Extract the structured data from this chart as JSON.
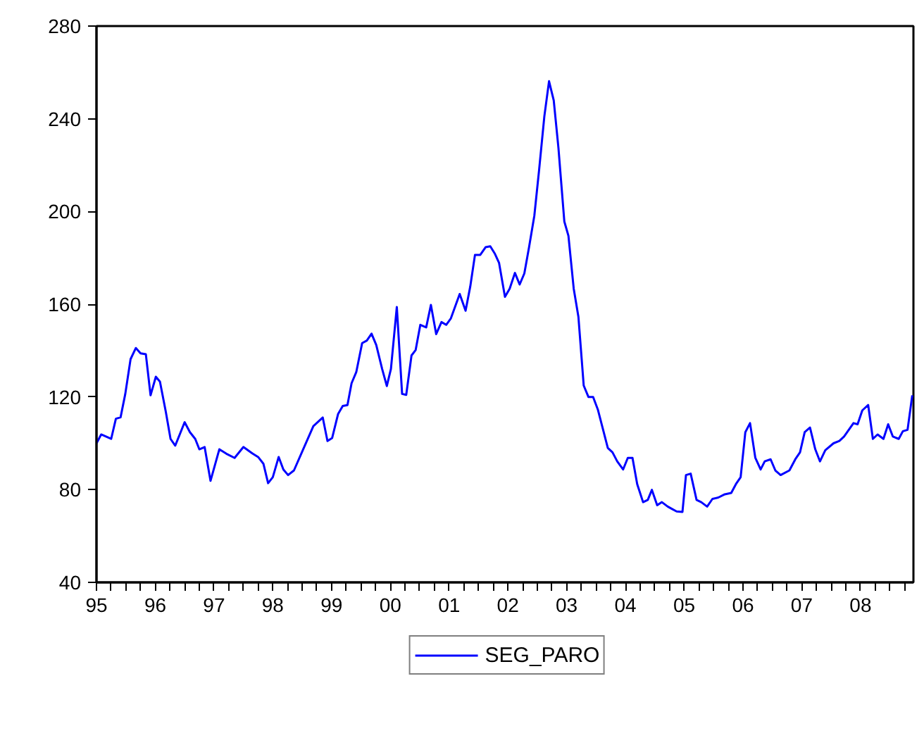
{
  "chart_data": {
    "type": "line",
    "legend": "bottom",
    "x": [
      1995.0,
      1995.08,
      1995.25,
      1995.33,
      1995.41,
      1995.49,
      1995.58,
      1995.67,
      1995.75,
      1995.84,
      1995.92,
      1996.01,
      1996.08,
      1996.18,
      1996.26,
      1996.34,
      1996.5,
      1996.59,
      1996.68,
      1996.75,
      1996.84,
      1996.94,
      1997.09,
      1997.21,
      1997.35,
      1997.5,
      1997.65,
      1997.75,
      1997.84,
      1997.92,
      1998.0,
      1998.1,
      1998.18,
      1998.26,
      1998.36,
      1998.51,
      1998.69,
      1998.85,
      1998.93,
      1999.01,
      1999.11,
      1999.19,
      1999.27,
      1999.34,
      1999.42,
      1999.52,
      1999.6,
      1999.68,
      1999.76,
      1999.86,
      1999.94,
      2000.01,
      2000.11,
      2000.2,
      2000.27,
      2000.36,
      2000.43,
      2000.51,
      2000.61,
      2000.69,
      2000.78,
      2000.87,
      2000.95,
      2001.03,
      2001.18,
      2001.28,
      2001.36,
      2001.44,
      2001.53,
      2001.62,
      2001.7,
      2001.78,
      2001.85,
      2001.95,
      2002.03,
      2002.12,
      2002.2,
      2002.28,
      2002.36,
      2002.45,
      2002.53,
      2002.62,
      2002.7,
      2002.78,
      2002.86,
      2002.96,
      2003.03,
      2003.12,
      2003.2,
      2003.29,
      2003.37,
      2003.45,
      2003.53,
      2003.61,
      2003.7,
      2003.78,
      2003.86,
      2003.96,
      2004.04,
      2004.12,
      2004.2,
      2004.3,
      2004.38,
      2004.45,
      2004.54,
      2004.62,
      2004.72,
      2004.79,
      2004.87,
      2004.97,
      2005.03,
      2005.11,
      2005.21,
      2005.29,
      2005.39,
      2005.48,
      2005.58,
      2005.69,
      2005.8,
      2005.88,
      2005.96,
      2006.04,
      2006.12,
      2006.21,
      2006.3,
      2006.37,
      2006.47,
      2006.55,
      2006.64,
      2006.79,
      2006.89,
      2006.97,
      2007.05,
      2007.14,
      2007.23,
      2007.31,
      2007.4,
      2007.54,
      2007.64,
      2007.72,
      2007.88,
      2007.95,
      2008.03,
      2008.13,
      2008.21,
      2008.29,
      2008.39,
      2008.47,
      2008.55,
      2008.65,
      2008.72,
      2008.8,
      2008.88
    ],
    "series": [
      {
        "name": "SEG_PARO",
        "color": "#0000ff",
        "values": [
          100,
          103.8,
          101.9,
          110.6,
          111.2,
          121.3,
          136.3,
          141.1,
          138.8,
          138.4,
          120.7,
          128.7,
          126.6,
          113.5,
          101.9,
          99.0,
          109.1,
          104.8,
          101.9,
          97.4,
          98.4,
          83.8,
          97.4,
          95.5,
          93.7,
          98.4,
          95.7,
          94.1,
          91.2,
          82.8,
          85.4,
          94.1,
          88.7,
          86.3,
          88.3,
          97.0,
          107.4,
          111.1,
          101.0,
          102.3,
          112.6,
          116.1,
          116.5,
          125.9,
          130.7,
          143.2,
          144.3,
          147.3,
          142.4,
          132.1,
          124.7,
          132.1,
          158.8,
          121.3,
          120.9,
          137.9,
          140.2,
          151.1,
          150.0,
          159.7,
          147.1,
          152.3,
          151.1,
          153.9,
          164.4,
          157.2,
          167.7,
          181.3,
          181.3,
          184.6,
          185.0,
          181.7,
          177.8,
          163.2,
          166.7,
          173.5,
          168.5,
          173.3,
          184.6,
          198.2,
          217.7,
          241.0,
          256.2,
          247.9,
          227.4,
          195.7,
          189.5,
          166.7,
          154.5,
          124.9,
          120.0,
          120.0,
          114.6,
          106.8,
          98.0,
          96.1,
          92.2,
          88.7,
          93.7,
          93.7,
          82.4,
          74.6,
          75.6,
          79.9,
          73.3,
          74.6,
          72.7,
          71.7,
          70.6,
          70.4,
          86.3,
          86.9,
          75.6,
          74.6,
          72.7,
          76.0,
          76.6,
          78.0,
          78.6,
          82.4,
          85.4,
          104.8,
          108.7,
          93.7,
          88.7,
          92.2,
          93.1,
          88.3,
          86.3,
          88.3,
          93.1,
          96.1,
          104.8,
          106.8,
          97.4,
          92.2,
          97.0,
          100.0,
          101.0,
          102.9,
          108.7,
          108.2,
          114.2,
          116.5,
          101.9,
          103.8,
          101.9,
          108.2,
          102.9,
          101.9,
          105.2,
          105.8,
          120.7
        ]
      }
    ],
    "xlim": [
      1995.0,
      2008.9
    ],
    "xticks": [
      {
        "value": 1995,
        "label": "95"
      },
      {
        "value": 1995.25,
        "label": null
      },
      {
        "value": 1995.5,
        "label": null
      },
      {
        "value": 1995.75,
        "label": null
      },
      {
        "value": 1996,
        "label": "96"
      },
      {
        "value": 1996.25,
        "label": null
      },
      {
        "value": 1996.5,
        "label": null
      },
      {
        "value": 1996.75,
        "label": null
      },
      {
        "value": 1997,
        "label": "97"
      },
      {
        "value": 1997.25,
        "label": null
      },
      {
        "value": 1997.5,
        "label": null
      },
      {
        "value": 1997.75,
        "label": null
      },
      {
        "value": 1998,
        "label": "98"
      },
      {
        "value": 1998.25,
        "label": null
      },
      {
        "value": 1998.5,
        "label": null
      },
      {
        "value": 1998.75,
        "label": null
      },
      {
        "value": 1999,
        "label": "99"
      },
      {
        "value": 1999.25,
        "label": null
      },
      {
        "value": 1999.5,
        "label": null
      },
      {
        "value": 1999.75,
        "label": null
      },
      {
        "value": 2000,
        "label": "00"
      },
      {
        "value": 2000.25,
        "label": null
      },
      {
        "value": 2000.5,
        "label": null
      },
      {
        "value": 2000.75,
        "label": null
      },
      {
        "value": 2001,
        "label": "01"
      },
      {
        "value": 2001.25,
        "label": null
      },
      {
        "value": 2001.5,
        "label": null
      },
      {
        "value": 2001.75,
        "label": null
      },
      {
        "value": 2002,
        "label": "02"
      },
      {
        "value": 2002.25,
        "label": null
      },
      {
        "value": 2002.5,
        "label": null
      },
      {
        "value": 2002.75,
        "label": null
      },
      {
        "value": 2003,
        "label": "03"
      },
      {
        "value": 2003.25,
        "label": null
      },
      {
        "value": 2003.5,
        "label": null
      },
      {
        "value": 2003.75,
        "label": null
      },
      {
        "value": 2004,
        "label": "04"
      },
      {
        "value": 2004.25,
        "label": null
      },
      {
        "value": 2004.5,
        "label": null
      },
      {
        "value": 2004.75,
        "label": null
      },
      {
        "value": 2005,
        "label": "05"
      },
      {
        "value": 2005.25,
        "label": null
      },
      {
        "value": 2005.5,
        "label": null
      },
      {
        "value": 2005.75,
        "label": null
      },
      {
        "value": 2006,
        "label": "06"
      },
      {
        "value": 2006.25,
        "label": null
      },
      {
        "value": 2006.5,
        "label": null
      },
      {
        "value": 2006.75,
        "label": null
      },
      {
        "value": 2007,
        "label": "07"
      },
      {
        "value": 2007.25,
        "label": null
      },
      {
        "value": 2007.5,
        "label": null
      },
      {
        "value": 2007.75,
        "label": null
      },
      {
        "value": 2008,
        "label": "08"
      },
      {
        "value": 2008.25,
        "label": null
      },
      {
        "value": 2008.5,
        "label": null
      },
      {
        "value": 2008.75,
        "label": null
      }
    ],
    "ylim": [
      40,
      280
    ],
    "yticks": [
      40,
      80,
      120,
      160,
      200,
      240,
      280
    ]
  }
}
